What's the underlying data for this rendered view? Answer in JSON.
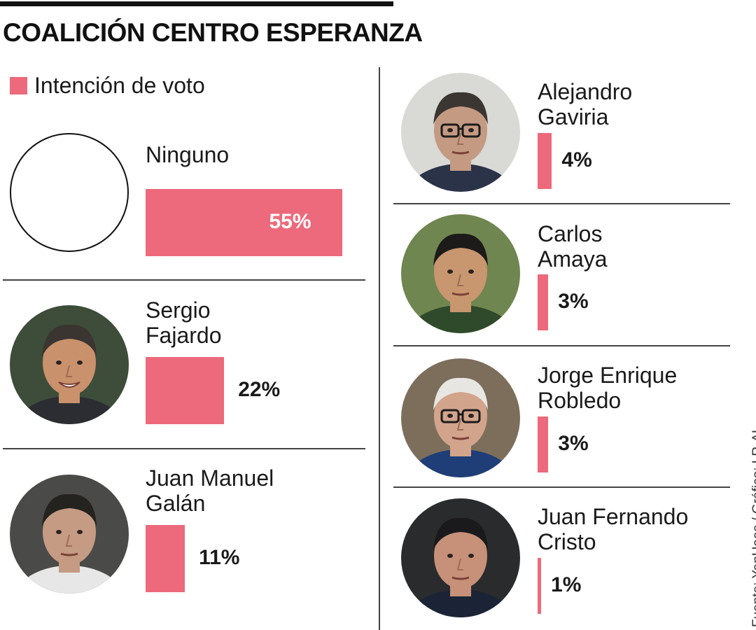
{
  "chart_data": {
    "type": "bar",
    "title": "COALICIÓN CENTRO ESPERANZA",
    "series": [
      {
        "name": "Intención de voto",
        "values": [
          55,
          22,
          11,
          4,
          3,
          3,
          1
        ]
      }
    ],
    "categories": [
      "Ninguno",
      "Sergio Fajardo",
      "Juan Manuel Galán",
      "Alejandro Gaviria",
      "Carlos Amaya",
      "Jorge Enrique Robledo",
      "Juan Fernando Cristo"
    ],
    "value_labels": [
      "55%",
      "22%",
      "11%",
      "4%",
      "3%",
      "3%",
      "1%"
    ],
    "unit": "%",
    "legend_position": "top-left",
    "grid": false,
    "colors": {
      "bar": "#ec6a7b",
      "text": "#1a1a1a",
      "rule": "#111111"
    }
  },
  "source": "Fuente: YanHaas / Gráfico: LR-AL",
  "candidates": [
    {
      "name_lines": [
        "Ninguno"
      ],
      "value": 55,
      "label": "55%",
      "photo": "empty-circle"
    },
    {
      "name_lines": [
        "Sergio",
        "Fajardo"
      ],
      "value": 22,
      "label": "22%",
      "photo": "portrait-sergio-fajardo"
    },
    {
      "name_lines": [
        "Juan Manuel",
        "Galán"
      ],
      "value": 11,
      "label": "11%",
      "photo": "portrait-juan-manuel-galan"
    },
    {
      "name_lines": [
        "Alejandro",
        "Gaviria"
      ],
      "value": 4,
      "label": "4%",
      "photo": "portrait-alejandro-gaviria"
    },
    {
      "name_lines": [
        "Carlos",
        "Amaya"
      ],
      "value": 3,
      "label": "3%",
      "photo": "portrait-carlos-amaya"
    },
    {
      "name_lines": [
        "Jorge Enrique",
        "Robledo"
      ],
      "value": 3,
      "label": "3%",
      "photo": "portrait-jorge-enrique-robledo"
    },
    {
      "name_lines": [
        "Juan Fernando",
        "Cristo"
      ],
      "value": 1,
      "label": "1%",
      "photo": "portrait-juan-fernando-cristo"
    }
  ]
}
